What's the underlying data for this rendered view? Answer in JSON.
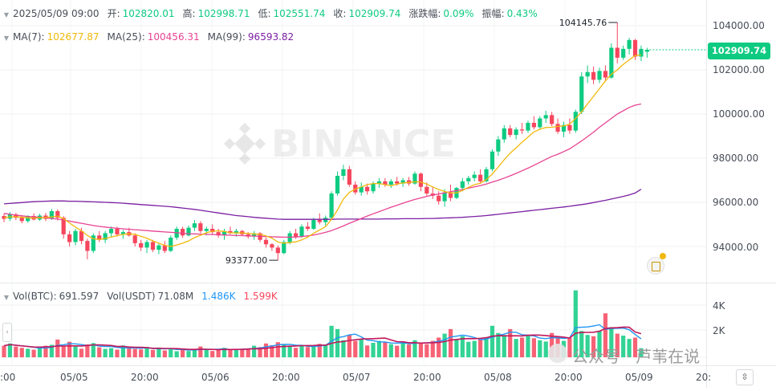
{
  "header": {
    "datetime": "2025/05/09 09:00",
    "open_label": "开:",
    "open": "102820.01",
    "high_label": "高:",
    "high": "102998.71",
    "low_label": "低:",
    "low": "102551.74",
    "close_label": "收:",
    "close": "102909.74",
    "change_label": "涨跌幅:",
    "change": "0.09%",
    "amp_label": "振幅:",
    "amp": "0.43%"
  },
  "ma": {
    "ma7_label": "MA(7):",
    "ma7": "102677.87",
    "ma25_label": "MA(25):",
    "ma25": "100456.31",
    "ma99_label": "MA(99):",
    "ma99": "96593.82"
  },
  "vol": {
    "btc_label": "Vol(BTC):",
    "btc": "691.597",
    "usdt_label": "Vol(USDT)",
    "usdt": "71.08M",
    "ma1": "1.486K",
    "ma2": "1.599K"
  },
  "price_tag": "102909.74",
  "high_marker": "104145.76",
  "low_marker": "93377.00",
  "price_axis": [
    "104000.00",
    "102000.00",
    "100000.00",
    "98000.00",
    "96000.00",
    "94000.00"
  ],
  "vol_axis": [
    "4K",
    "2K"
  ],
  "time_axis": [
    ":00",
    "05/05",
    "20:00",
    "05/06",
    "20:00",
    "05/07",
    "20:00",
    "05/08",
    "20:00",
    "05/09",
    "20:"
  ],
  "watermark": "BINANCE",
  "wechat_watermark": "公众号 · 芦苇在说",
  "colors": {
    "up": "#0ecb81",
    "down": "#f6465d",
    "ma7": "#f0b90b",
    "ma25": "#e84393",
    "ma99": "#7b1fa2",
    "vol_ma1": "#2196f3",
    "vol_ma2": "#c2185b"
  },
  "chart_data": {
    "type": "candlestick",
    "interval": "1h",
    "x_range": [
      "05/04 ~16:00",
      "05/09 09:00"
    ],
    "ylim": [
      92700,
      105000
    ],
    "yticks": [
      94000,
      96000,
      98000,
      100000,
      102000,
      104000
    ],
    "candles": [
      [
        95380,
        95480,
        95100,
        95250
      ],
      [
        95260,
        95560,
        95150,
        95450
      ],
      [
        95450,
        95520,
        95200,
        95300
      ],
      [
        95300,
        95420,
        95050,
        95150
      ],
      [
        95150,
        95420,
        95080,
        95380
      ],
      [
        95380,
        95500,
        95180,
        95220
      ],
      [
        95220,
        95480,
        95160,
        95400
      ],
      [
        95400,
        95520,
        95150,
        95250
      ],
      [
        95250,
        95700,
        95200,
        95600
      ],
      [
        95600,
        95680,
        95180,
        95300
      ],
      [
        95300,
        95380,
        94350,
        94550
      ],
      [
        94550,
        94700,
        94000,
        94200
      ],
      [
        94200,
        94800,
        94050,
        94700
      ],
      [
        94700,
        94850,
        94100,
        94250
      ],
      [
        94250,
        94350,
        93420,
        93800
      ],
      [
        93800,
        94600,
        93700,
        94500
      ],
      [
        94500,
        94700,
        94200,
        94300
      ],
      [
        94300,
        94700,
        94150,
        94600
      ],
      [
        94600,
        94900,
        94400,
        94800
      ],
      [
        94800,
        94900,
        94450,
        94550
      ],
      [
        94550,
        94750,
        94350,
        94650
      ],
      [
        94650,
        94850,
        94450,
        94500
      ],
      [
        94500,
        94600,
        94000,
        94150
      ],
      [
        94150,
        94300,
        93800,
        93950
      ],
      [
        93950,
        94300,
        93700,
        94200
      ],
      [
        94200,
        94300,
        93750,
        93850
      ],
      [
        93850,
        94150,
        93650,
        94050
      ],
      [
        94050,
        94250,
        93700,
        93800
      ],
      [
        93800,
        94500,
        93750,
        94400
      ],
      [
        94400,
        94900,
        94300,
        94800
      ],
      [
        94800,
        94900,
        94400,
        94500
      ],
      [
        94500,
        94950,
        94450,
        94850
      ],
      [
        94850,
        95200,
        94700,
        95050
      ],
      [
        95050,
        95150,
        94600,
        94700
      ],
      [
        94700,
        94900,
        94500,
        94800
      ],
      [
        94800,
        95000,
        94550,
        94650
      ],
      [
        94650,
        94800,
        94400,
        94500
      ],
      [
        94500,
        94800,
        94300,
        94700
      ],
      [
        94700,
        94900,
        94550,
        94600
      ],
      [
        94600,
        94800,
        94450,
        94700
      ],
      [
        94700,
        94750,
        94500,
        94550
      ],
      [
        94550,
        94650,
        94350,
        94450
      ],
      [
        94450,
        94700,
        94300,
        94600
      ],
      [
        94600,
        94650,
        94200,
        94300
      ],
      [
        94300,
        94400,
        93950,
        94100
      ],
      [
        94100,
        94150,
        93800,
        93950
      ],
      [
        93950,
        94050,
        93377,
        93700
      ],
      [
        93700,
        94300,
        93650,
        94200
      ],
      [
        94200,
        94700,
        94100,
        94600
      ],
      [
        94600,
        94800,
        94350,
        94450
      ],
      [
        94450,
        95000,
        94400,
        94900
      ],
      [
        94900,
        95100,
        94700,
        94800
      ],
      [
        94800,
        95300,
        94750,
        95200
      ],
      [
        95200,
        95500,
        95000,
        95100
      ],
      [
        95100,
        95400,
        94950,
        95300
      ],
      [
        95300,
        96500,
        95200,
        96400
      ],
      [
        96400,
        97400,
        96300,
        97200
      ],
      [
        97200,
        97700,
        97000,
        97500
      ],
      [
        97500,
        97650,
        96700,
        96800
      ],
      [
        96800,
        96950,
        96350,
        96450
      ],
      [
        96450,
        96900,
        96300,
        96700
      ],
      [
        96700,
        96850,
        96350,
        96500
      ],
      [
        96500,
        96950,
        96400,
        96850
      ],
      [
        96850,
        97100,
        96650,
        96950
      ],
      [
        96950,
        97100,
        96700,
        96800
      ],
      [
        96800,
        97050,
        96650,
        96950
      ],
      [
        96950,
        97150,
        96750,
        96850
      ],
      [
        96850,
        97100,
        96700,
        97000
      ],
      [
        97000,
        97150,
        96750,
        96850
      ],
      [
        96850,
        97400,
        96800,
        97300
      ],
      [
        97300,
        97350,
        96500,
        96700
      ],
      [
        96700,
        96900,
        96300,
        96400
      ],
      [
        96400,
        96700,
        96150,
        96300
      ],
      [
        96300,
        96500,
        95900,
        96050
      ],
      [
        96050,
        96600,
        95800,
        96450
      ],
      [
        96450,
        96800,
        96050,
        96200
      ],
      [
        96200,
        96700,
        96150,
        96650
      ],
      [
        96650,
        97100,
        96500,
        96950
      ],
      [
        96950,
        97200,
        96800,
        97100
      ],
      [
        97100,
        97400,
        96950,
        97250
      ],
      [
        97250,
        97500,
        96850,
        96950
      ],
      [
        96950,
        97600,
        96900,
        97500
      ],
      [
        97500,
        98400,
        97400,
        98300
      ],
      [
        98300,
        99000,
        98100,
        98850
      ],
      [
        98850,
        99500,
        98700,
        99350
      ],
      [
        99350,
        99500,
        98950,
        99050
      ],
      [
        99050,
        99400,
        98850,
        99300
      ],
      [
        99300,
        99600,
        99100,
        99250
      ],
      [
        99250,
        99700,
        99150,
        99600
      ],
      [
        99600,
        99900,
        99300,
        99400
      ],
      [
        99400,
        99900,
        99300,
        99800
      ],
      [
        99800,
        100150,
        99600,
        99950
      ],
      [
        99950,
        100100,
        99450,
        99550
      ],
      [
        99550,
        99800,
        99100,
        99200
      ],
      [
        99200,
        99650,
        98950,
        99500
      ],
      [
        99500,
        99800,
        99100,
        99250
      ],
      [
        99250,
        100200,
        99150,
        100100
      ],
      [
        100100,
        101900,
        100000,
        101700
      ],
      [
        101700,
        102200,
        101400,
        101900
      ],
      [
        101900,
        102150,
        101350,
        101550
      ],
      [
        101550,
        102100,
        101400,
        101950
      ],
      [
        101950,
        102200,
        101500,
        101650
      ],
      [
        101650,
        103200,
        101600,
        103000
      ],
      [
        103000,
        104145.76,
        102300,
        102550
      ],
      [
        102550,
        103100,
        102450,
        102950
      ],
      [
        102950,
        103450,
        102700,
        103350
      ],
      [
        103350,
        103400,
        102450,
        102600
      ],
      [
        102600,
        103100,
        102400,
        102950
      ],
      [
        102820.01,
        102998.71,
        102551.74,
        102909.74
      ]
    ],
    "ma7": [
      95300,
      95340,
      95350,
      95320,
      95300,
      95290,
      95300,
      95310,
      95340,
      95380,
      95260,
      95070,
      94880,
      94710,
      94500,
      94350,
      94320,
      94360,
      94430,
      94490,
      94550,
      94570,
      94550,
      94460,
      94380,
      94250,
      94150,
      94050,
      94000,
      94070,
      94150,
      94250,
      94400,
      94510,
      94620,
      94690,
      94710,
      94680,
      94620,
      94610,
      94610,
      94590,
      94570,
      94550,
      94480,
      94380,
      94200,
      94150,
      94180,
      94210,
      94300,
      94420,
      94600,
      94750,
      94900,
      95230,
      95650,
      96150,
      96450,
      96600,
      96700,
      96800,
      96850,
      96850,
      96800,
      96750,
      96820,
      96880,
      96900,
      96930,
      96920,
      96830,
      96700,
      96580,
      96490,
      96430,
      96420,
      96540,
      96680,
      96800,
      96860,
      97030,
      97280,
      97600,
      97930,
      98220,
      98470,
      98720,
      98960,
      99190,
      99310,
      99390,
      99400,
      99440,
      99460,
      99540,
      99800,
      100100,
      100460,
      100800,
      101150,
      101500,
      101800,
      102000,
      102250,
      102450,
      102650,
      102677.87
    ],
    "ma25": [
      95500,
      95460,
      95420,
      95390,
      95360,
      95340,
      95320,
      95300,
      95270,
      95240,
      95200,
      95150,
      95100,
      95050,
      95000,
      94950,
      94910,
      94880,
      94850,
      94820,
      94800,
      94780,
      94760,
      94740,
      94720,
      94700,
      94680,
      94660,
      94640,
      94620,
      94600,
      94580,
      94570,
      94560,
      94550,
      94540,
      94530,
      94520,
      94510,
      94500,
      94490,
      94480,
      94470,
      94460,
      94450,
      94440,
      94430,
      94420,
      94420,
      94430,
      94450,
      94480,
      94520,
      94580,
      94640,
      94720,
      94820,
      94930,
      95050,
      95160,
      95270,
      95380,
      95480,
      95580,
      95680,
      95780,
      95870,
      95960,
      96050,
      96130,
      96200,
      96270,
      96330,
      96380,
      96430,
      96480,
      96530,
      96580,
      96640,
      96700,
      96760,
      96830,
      96920,
      97000,
      97100,
      97200,
      97310,
      97430,
      97550,
      97680,
      97810,
      97950,
      98080,
      98180,
      98300,
      98420,
      98600,
      98780,
      98980,
      99180,
      99400,
      99600,
      99800,
      100000,
      100150,
      100300,
      100400,
      100456.31
    ],
    "ma99": [
      95930,
      95950,
      95970,
      95990,
      96010,
      96030,
      96040,
      96050,
      96060,
      96060,
      96060,
      96050,
      96050,
      96040,
      96030,
      96020,
      96010,
      96000,
      95990,
      95980,
      95960,
      95940,
      95920,
      95900,
      95880,
      95860,
      95840,
      95820,
      95800,
      95770,
      95740,
      95710,
      95680,
      95640,
      95600,
      95560,
      95520,
      95480,
      95440,
      95400,
      95380,
      95350,
      95320,
      95300,
      95280,
      95260,
      95240,
      95230,
      95230,
      95230,
      95230,
      95230,
      95230,
      95230,
      95230,
      95230,
      95240,
      95240,
      95240,
      95240,
      95240,
      95240,
      95240,
      95240,
      95250,
      95250,
      95250,
      95260,
      95260,
      95260,
      95260,
      95270,
      95270,
      95280,
      95290,
      95300,
      95310,
      95320,
      95340,
      95360,
      95380,
      95400,
      95430,
      95460,
      95490,
      95520,
      95550,
      95580,
      95610,
      95640,
      95670,
      95700,
      95730,
      95760,
      95790,
      95820,
      95860,
      95900,
      95940,
      95990,
      96040,
      96090,
      96150,
      96210,
      96270,
      96340,
      96420,
      96593.82
    ],
    "volume": [
      880,
      1050,
      820,
      720,
      650,
      580,
      760,
      880,
      950,
      1350,
      820,
      1180,
      820,
      650,
      980,
      1080,
      760,
      640,
      700,
      580,
      900,
      720,
      640,
      600,
      780,
      560,
      740,
      520,
      700,
      460,
      560,
      480,
      620,
      820,
      600,
      480,
      560,
      720,
      620,
      540,
      620,
      680,
      880,
      780,
      1050,
      920,
      1150,
      980,
      840,
      720,
      860,
      780,
      920,
      1020,
      980,
      2400,
      2150,
      1300,
      1700,
      1250,
      1380,
      900,
      1100,
      1250,
      1180,
      1000,
      880,
      1150,
      980,
      1300,
      1100,
      1000,
      1250,
      1500,
      1800,
      2150,
      1350,
      1600,
      1180,
      1250,
      1350,
      1500,
      2400,
      1850,
      1700,
      2150,
      1400,
      1500,
      1650,
      1450,
      1300,
      1200,
      1850,
      1600,
      1250,
      1500,
      5100,
      2000,
      1700,
      1600,
      2000,
      3350,
      2300,
      1800,
      1650,
      1400,
      1500,
      691.597
    ],
    "vol_ylim": [
      0,
      5200
    ]
  }
}
